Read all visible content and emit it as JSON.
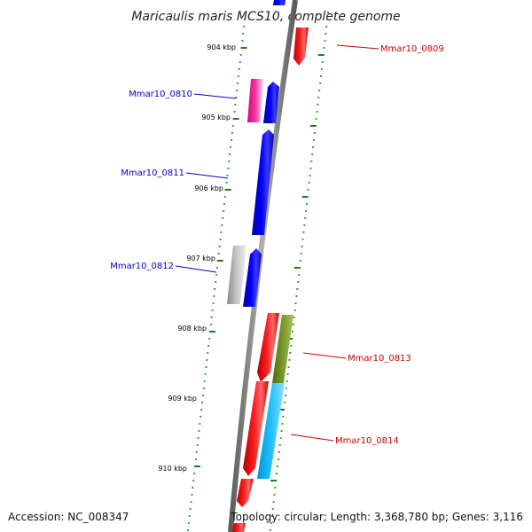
{
  "title": "Maricaulis maris MCS10, complete genome",
  "footer": {
    "accession": "Accession: NC_008347",
    "topology": "Topology: circular; Length: 3,368,780 bp; Genes: 3,116"
  },
  "scale_labels": [
    "904 kbp",
    "905 kbp",
    "906 kbp",
    "907 kbp",
    "908 kbp",
    "909 kbp",
    "910 kbp"
  ],
  "gene_labels": [
    "Mmar10_0809",
    "Mmar10_0810",
    "Mmar10_0811",
    "Mmar10_0812",
    "Mmar10_0813",
    "Mmar10_0814"
  ],
  "colors": {
    "backbone": "#808080",
    "scale_ticks": "#1a7f1a",
    "label_blue": "#0000cc",
    "label_red": "#cc0000",
    "gene_red": "#ff0000",
    "gene_blue": "#0000ff",
    "gene_magenta": "#ee1493",
    "gene_gray": "#b8b8b8",
    "gene_olive": "#6b8e23",
    "gene_cyan": "#00bfff"
  }
}
